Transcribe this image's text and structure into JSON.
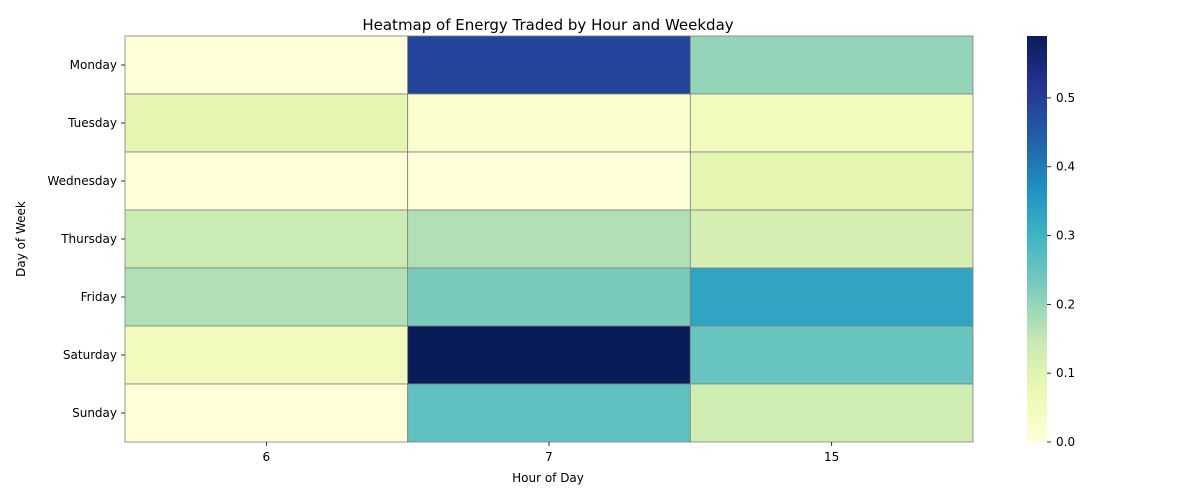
{
  "chart_data": {
    "type": "heatmap",
    "title": "Heatmap of Energy Traded by Hour and Weekday",
    "xlabel": "Hour of Day",
    "ylabel": "Day of Week",
    "x_categories": [
      "6",
      "7",
      "15"
    ],
    "y_categories": [
      "Monday",
      "Tuesday",
      "Wednesday",
      "Thursday",
      "Friday",
      "Saturday",
      "Sunday"
    ],
    "values": [
      [
        0.0,
        0.49,
        0.2
      ],
      [
        0.09,
        0.02,
        0.05
      ],
      [
        0.0,
        0.0,
        0.09
      ],
      [
        0.14,
        0.17,
        0.12
      ],
      [
        0.17,
        0.23,
        0.33
      ],
      [
        0.05,
        0.59,
        0.25
      ],
      [
        0.0,
        0.26,
        0.13
      ]
    ],
    "colorbar": {
      "min": 0.0,
      "max": 0.59,
      "ticks": [
        0.0,
        0.1,
        0.2,
        0.3,
        0.4,
        0.5
      ],
      "tick_labels": [
        "0.0",
        "0.1",
        "0.2",
        "0.3",
        "0.4",
        "0.5"
      ],
      "colormap": "YlGnBu",
      "colormap_stops": [
        "#ffffd9",
        "#edf8b1",
        "#c7e9b4",
        "#7fcdbb",
        "#41b6c4",
        "#1d91c0",
        "#225ea8",
        "#253494",
        "#081d58"
      ]
    },
    "grid": false,
    "legend": "colorbar-right"
  }
}
